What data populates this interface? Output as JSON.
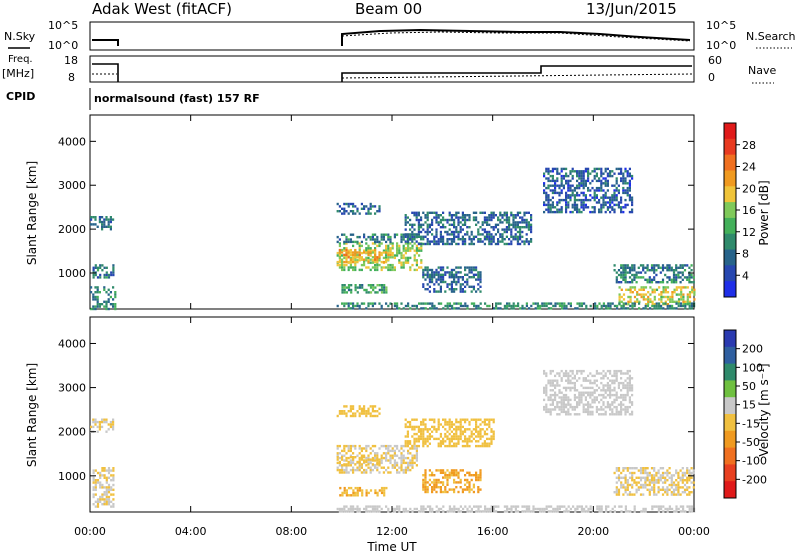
{
  "header": {
    "radar": "Adak West (fitACF)",
    "beam": "Beam 00",
    "date": "13/Jun/2015"
  },
  "top_panels": {
    "nsky_label": "N.Sky",
    "nsky_ticks": [
      "10^5",
      "10^0"
    ],
    "nsearch_label": "N.Search",
    "nsearch_ticks": [
      "10^5",
      "10^0"
    ],
    "freq_label": "Freq.",
    "freq_unit": "[MHz]",
    "freq_ticks": [
      "18",
      "8"
    ],
    "nave_label": "Nave",
    "nave_ticks": [
      "60",
      "0"
    ],
    "cpid_label": "CPID",
    "cpid_text": "normalsound (fast) 157 RF"
  },
  "x_axis": {
    "label": "Time UT",
    "ticks": [
      "00:00",
      "04:00",
      "08:00",
      "12:00",
      "16:00",
      "20:00",
      "00:00"
    ]
  },
  "colors": {
    "power": [
      "#1f2fe8",
      "#2747b0",
      "#27638a",
      "#2f8a6b",
      "#43b05a",
      "#7fc95a",
      "#f0c43a",
      "#f09a20",
      "#f07020",
      "#e83a20",
      "#e01a1a"
    ],
    "velocity": [
      "#2a3ab0",
      "#2f5fa0",
      "#2f8a6b",
      "#6fc040",
      "#c8c8c8",
      "#f0c040",
      "#f09a20",
      "#f07020",
      "#e84020",
      "#e01a1a"
    ]
  },
  "chart_data": [
    {
      "type": "heatmap",
      "name": "power",
      "xlabel": "Time UT",
      "ylabel": "Slant Range [km]",
      "xlim": [
        0,
        24
      ],
      "ylim": [
        180,
        4600
      ],
      "yticks": [
        1000,
        2000,
        3000,
        4000
      ],
      "colorbar": {
        "label": "Power [dB]",
        "range": [
          0,
          32
        ],
        "ticks": [
          "4",
          "8",
          "12",
          "16",
          "20",
          "24",
          "28"
        ]
      },
      "regions": [
        {
          "t0": 0.0,
          "t1": 0.9,
          "r0": 2000,
          "r1": 2300,
          "v": 8
        },
        {
          "t0": 0.1,
          "t1": 0.9,
          "r0": 900,
          "r1": 1200,
          "v": 8
        },
        {
          "t0": 0.0,
          "t1": 1.0,
          "r0": 200,
          "r1": 700,
          "v": 10
        },
        {
          "t0": 9.8,
          "t1": 13.2,
          "r0": 1050,
          "r1": 1700,
          "v": 16
        },
        {
          "t0": 9.8,
          "t1": 12.0,
          "r0": 1250,
          "r1": 1550,
          "v": 20
        },
        {
          "t0": 9.8,
          "t1": 13.0,
          "r0": 1700,
          "r1": 1900,
          "v": 9
        },
        {
          "t0": 9.8,
          "t1": 11.5,
          "r0": 2350,
          "r1": 2600,
          "v": 7
        },
        {
          "t0": 12.5,
          "t1": 17.5,
          "r0": 1650,
          "r1": 2400,
          "v": 7
        },
        {
          "t0": 9.9,
          "t1": 11.8,
          "r0": 550,
          "r1": 750,
          "v": 12
        },
        {
          "t0": 13.2,
          "t1": 15.5,
          "r0": 600,
          "r1": 1150,
          "v": 7
        },
        {
          "t0": 18.0,
          "t1": 21.5,
          "r0": 2400,
          "r1": 3400,
          "v": 6
        },
        {
          "t0": 20.8,
          "t1": 24.0,
          "r0": 800,
          "r1": 1200,
          "v": 9
        },
        {
          "t0": 21.0,
          "t1": 24.0,
          "r0": 300,
          "r1": 700,
          "v": 18
        },
        {
          "t0": 9.8,
          "t1": 24.0,
          "r0": 180,
          "r1": 330,
          "v": 10
        }
      ]
    },
    {
      "type": "heatmap",
      "name": "velocity",
      "xlabel": "Time UT",
      "ylabel": "Slant Range [km]",
      "xlim": [
        0,
        24
      ],
      "ylim": [
        180,
        4600
      ],
      "yticks": [
        1000,
        2000,
        3000,
        4000
      ],
      "colorbar": {
        "label": "Velocity [m s⁻¹]",
        "range": [
          -250,
          250
        ],
        "ticks": [
          "200",
          "100",
          "50",
          "15",
          "-15",
          "-50",
          "-100",
          "-200"
        ]
      },
      "regions": [
        {
          "t0": 0.0,
          "t1": 0.9,
          "r0": 2000,
          "r1": 2300,
          "v": 0
        },
        {
          "t0": 0.1,
          "t1": 0.9,
          "r0": 300,
          "r1": 1200,
          "v": 5
        },
        {
          "t0": 9.8,
          "t1": 13.0,
          "r0": 1100,
          "r1": 1700,
          "v": 0
        },
        {
          "t0": 9.8,
          "t1": 11.5,
          "r0": 1250,
          "r1": 1450,
          "v": -30
        },
        {
          "t0": 12.5,
          "t1": 16.0,
          "r0": 1700,
          "r1": 2300,
          "v": -25
        },
        {
          "t0": 9.9,
          "t1": 11.8,
          "r0": 550,
          "r1": 750,
          "v": -40
        },
        {
          "t0": 13.2,
          "t1": 15.5,
          "r0": 650,
          "r1": 1150,
          "v": -60
        },
        {
          "t0": 9.8,
          "t1": 11.5,
          "r0": 2350,
          "r1": 2600,
          "v": -20
        },
        {
          "t0": 18.0,
          "t1": 21.5,
          "r0": 2400,
          "r1": 3400,
          "v": 20
        },
        {
          "t0": 20.8,
          "t1": 24.0,
          "r0": 600,
          "r1": 1200,
          "v": 0
        },
        {
          "t0": 9.8,
          "t1": 24.0,
          "r0": 180,
          "r1": 330,
          "v": 30
        }
      ]
    }
  ]
}
